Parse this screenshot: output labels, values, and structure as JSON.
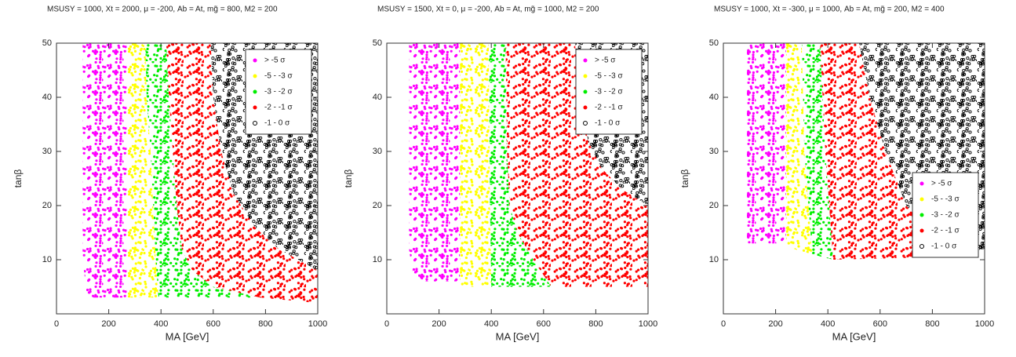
{
  "chart_data": [
    {
      "type": "region",
      "title": "MSUSY = 1000, Xt = 2000, μ = -200, Ab = At, mg̃ = 800, M2 = 200",
      "xlabel": "MA [GeV]",
      "ylabel": "tanβ",
      "xlim": [
        0,
        1000
      ],
      "ylim": [
        0,
        50
      ],
      "xticks": [
        0,
        200,
        400,
        600,
        800,
        1000
      ],
      "yticks": [
        10,
        20,
        30,
        40,
        50
      ],
      "legend": "upper right",
      "series": [
        {
          "name": "> -5 σ",
          "color": "#ff00ff",
          "marker": "filled",
          "x": [
            100,
            100,
            115,
            140,
            270,
            270
          ],
          "y": [
            50,
            10,
            4,
            3,
            3,
            50
          ]
        },
        {
          "name": "-5 - -3 σ",
          "color": "#ffff00",
          "marker": "filled",
          "x": [
            270,
            270,
            390,
            380,
            370,
            360,
            345,
            340
          ],
          "y": [
            50,
            3,
            3,
            10,
            20,
            30,
            40,
            50
          ]
        },
        {
          "name": "-3 - -2 σ",
          "color": "#00ee00",
          "marker": "filled",
          "x": [
            340,
            345,
            360,
            370,
            380,
            390,
            780,
            600,
            520,
            480,
            460,
            445,
            430,
            420
          ],
          "y": [
            50,
            40,
            30,
            20,
            10,
            3,
            3,
            5,
            8,
            12,
            20,
            30,
            40,
            50
          ]
        },
        {
          "name": "-2 - -1 σ",
          "color": "#ff0000",
          "marker": "filled",
          "x": [
            420,
            430,
            445,
            460,
            480,
            520,
            600,
            780,
            1000,
            1000,
            850,
            760,
            680,
            630,
            600,
            590
          ],
          "y": [
            50,
            40,
            30,
            20,
            12,
            8,
            5,
            3,
            2,
            8,
            12,
            16,
            22,
            30,
            40,
            50
          ]
        },
        {
          "name": "-1 - 0 σ",
          "color": "#000000",
          "marker": "open",
          "x": [
            590,
            600,
            630,
            680,
            760,
            850,
            1000,
            1000
          ],
          "y": [
            50,
            40,
            30,
            22,
            16,
            12,
            8,
            50
          ]
        }
      ]
    },
    {
      "type": "region",
      "title": "MSUSY = 1500, Xt = 0, μ = -200, Ab = At, mg̃ = 1000, M2 = 200",
      "xlabel": "MA [GeV]",
      "ylabel": "tanβ",
      "xlim": [
        0,
        1000
      ],
      "ylim": [
        0,
        50
      ],
      "xticks": [
        0,
        200,
        400,
        600,
        800,
        1000
      ],
      "yticks": [
        10,
        20,
        30,
        40,
        50
      ],
      "legend": "upper right",
      "series": [
        {
          "name": "> -5 σ",
          "color": "#ff00ff",
          "marker": "filled",
          "x": [
            85,
            85,
            100,
            130,
            280,
            280
          ],
          "y": [
            50,
            12,
            7,
            6,
            6,
            50
          ]
        },
        {
          "name": "-5 - -3 σ",
          "color": "#ffff00",
          "marker": "filled",
          "x": [
            280,
            280,
            400,
            395,
            390
          ],
          "y": [
            50,
            5,
            5,
            20,
            50
          ]
        },
        {
          "name": "-3 - -2 σ",
          "color": "#00ee00",
          "marker": "filled",
          "x": [
            390,
            395,
            400,
            630,
            560,
            500,
            470,
            460,
            455
          ],
          "y": [
            50,
            20,
            5,
            5,
            10,
            15,
            20,
            30,
            50
          ]
        },
        {
          "name": "-2 - -1 σ",
          "color": "#ff0000",
          "marker": "filled",
          "x": [
            455,
            460,
            470,
            500,
            560,
            630,
            1000,
            1000,
            900,
            820,
            770,
            740,
            720
          ],
          "y": [
            50,
            30,
            20,
            15,
            10,
            5,
            5,
            20,
            23,
            27,
            32,
            40,
            50
          ]
        },
        {
          "name": "-1 - 0 σ",
          "color": "#000000",
          "marker": "open",
          "x": [
            720,
            740,
            770,
            820,
            900,
            1000,
            1000
          ],
          "y": [
            50,
            40,
            32,
            27,
            23,
            20,
            50
          ]
        }
      ]
    },
    {
      "type": "region",
      "title": "MSUSY = 1000, Xt = -300, μ = 1000, Ab = At, mg̃ = 200, M2 = 400",
      "xlabel": "MA [GeV]",
      "ylabel": "tanβ",
      "xlim": [
        0,
        1000
      ],
      "ylim": [
        0,
        50
      ],
      "xticks": [
        0,
        200,
        400,
        600,
        800,
        1000
      ],
      "yticks": [
        10,
        20,
        30,
        40,
        50
      ],
      "legend": "lower right",
      "series": [
        {
          "name": "> -5 σ",
          "color": "#ff00ff",
          "marker": "filled",
          "x": [
            90,
            90,
            240,
            240
          ],
          "y": [
            50,
            13,
            13,
            50
          ]
        },
        {
          "name": "-5 - -3 σ",
          "color": "#ffff00",
          "marker": "filled",
          "x": [
            240,
            240,
            270,
            340,
            310,
            300
          ],
          "y": [
            50,
            13,
            12,
            11,
            30,
            50
          ]
        },
        {
          "name": "-3 - -2 σ",
          "color": "#00ee00",
          "marker": "filled",
          "x": [
            300,
            310,
            340,
            420,
            390,
            370
          ],
          "y": [
            50,
            30,
            11,
            10,
            30,
            50
          ]
        },
        {
          "name": "-2 - -1 σ",
          "color": "#ff0000",
          "marker": "filled",
          "x": [
            370,
            390,
            420,
            830,
            790,
            700,
            620,
            560,
            520
          ],
          "y": [
            50,
            30,
            10,
            10.5,
            15,
            20,
            30,
            40,
            50
          ]
        },
        {
          "name": "-1 - 0 σ",
          "color": "#000000",
          "marker": "open",
          "x": [
            520,
            560,
            620,
            700,
            790,
            830,
            1000,
            1000
          ],
          "y": [
            50,
            40,
            30,
            20,
            15,
            10.5,
            12,
            50
          ]
        }
      ]
    }
  ]
}
